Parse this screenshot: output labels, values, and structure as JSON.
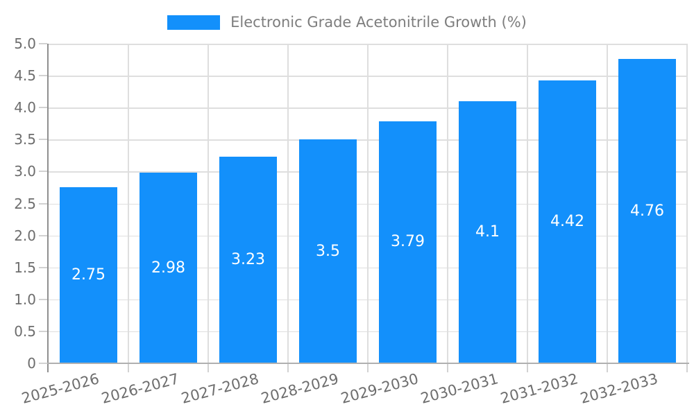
{
  "chart_data": {
    "type": "bar",
    "title": "Electronic Grade Acetonitrile Growth (%)",
    "categories": [
      "2025-2026",
      "2026-2027",
      "2027-2028",
      "2028-2029",
      "2029-2030",
      "2030-2031",
      "2031-2032",
      "2032-2033"
    ],
    "values": [
      2.75,
      2.98,
      3.23,
      3.5,
      3.79,
      4.1,
      4.42,
      4.76
    ],
    "value_labels": [
      "2.75",
      "2.98",
      "3.23",
      "3.5",
      "3.79",
      "4.1",
      "4.42",
      "4.76"
    ],
    "xlabel": "",
    "ylabel": "",
    "ylim": [
      0,
      5
    ],
    "ytick_step": 0.5,
    "ytick_labels": [
      "5.0",
      "4.5",
      "4.0",
      "3.5",
      "3.0",
      "2.5",
      "2.0",
      "1.5",
      "1.0",
      "0.5",
      "0"
    ],
    "grid": true,
    "legend_position": "top-center",
    "value_label_position": "inside-center",
    "bar_color": "#1390fb",
    "value_label_color": "#ffffff",
    "axis_text_color": "#6d6d6d",
    "legend_text_color": "#7d7d7d"
  }
}
